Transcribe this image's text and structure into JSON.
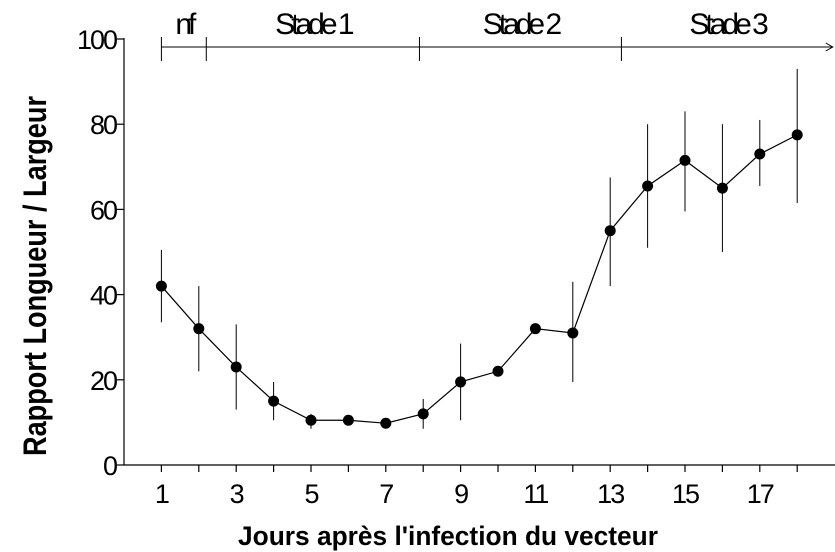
{
  "chart_data": {
    "type": "line",
    "xlabel": "Jours après l'infection du vecteur",
    "ylabel": "Rapport Longueur / Largeur",
    "xlim": [
      0,
      19
    ],
    "ylim": [
      0,
      10
    ],
    "x_ticks": [
      1,
      3,
      5,
      7,
      9,
      11,
      13,
      15,
      17
    ],
    "y_ticks": [
      0,
      2,
      4,
      6,
      8,
      10
    ],
    "y_tick_labels": [
      "0",
      "20",
      "40",
      "60",
      "80",
      "100"
    ],
    "stages": [
      {
        "label": "nf",
        "start": 1,
        "end": 2.2
      },
      {
        "label": "Stade 1",
        "start": 2.2,
        "end": 7.9
      },
      {
        "label": "Stade 2",
        "start": 7.9,
        "end": 13.3
      },
      {
        "label": "Stade 3",
        "start": 13.3,
        "end": 18.95
      }
    ],
    "series": [
      {
        "x": [
          1,
          2,
          3,
          4,
          5,
          6,
          7,
          8,
          9,
          10,
          11,
          12,
          13,
          14,
          15,
          16,
          17,
          18
        ],
        "values": [
          4.2,
          3.2,
          2.3,
          1.5,
          1.05,
          1.05,
          0.98,
          1.2,
          1.95,
          2.2,
          3.2,
          3.1,
          5.5,
          6.55,
          7.15,
          6.5,
          7.3,
          7.75
        ],
        "err_low": [
          3.35,
          2.2,
          1.3,
          1.05,
          0.85,
          1.05,
          0.98,
          0.85,
          1.05,
          2.2,
          3.2,
          1.95,
          4.2,
          5.1,
          5.95,
          5.0,
          6.55,
          6.15
        ],
        "err_high": [
          5.05,
          4.2,
          3.3,
          1.95,
          1.2,
          1.05,
          0.98,
          1.55,
          2.85,
          2.2,
          3.2,
          4.3,
          6.75,
          8.0,
          8.3,
          8.0,
          8.1,
          9.3
        ]
      }
    ],
    "grid": false,
    "legend": "none"
  }
}
